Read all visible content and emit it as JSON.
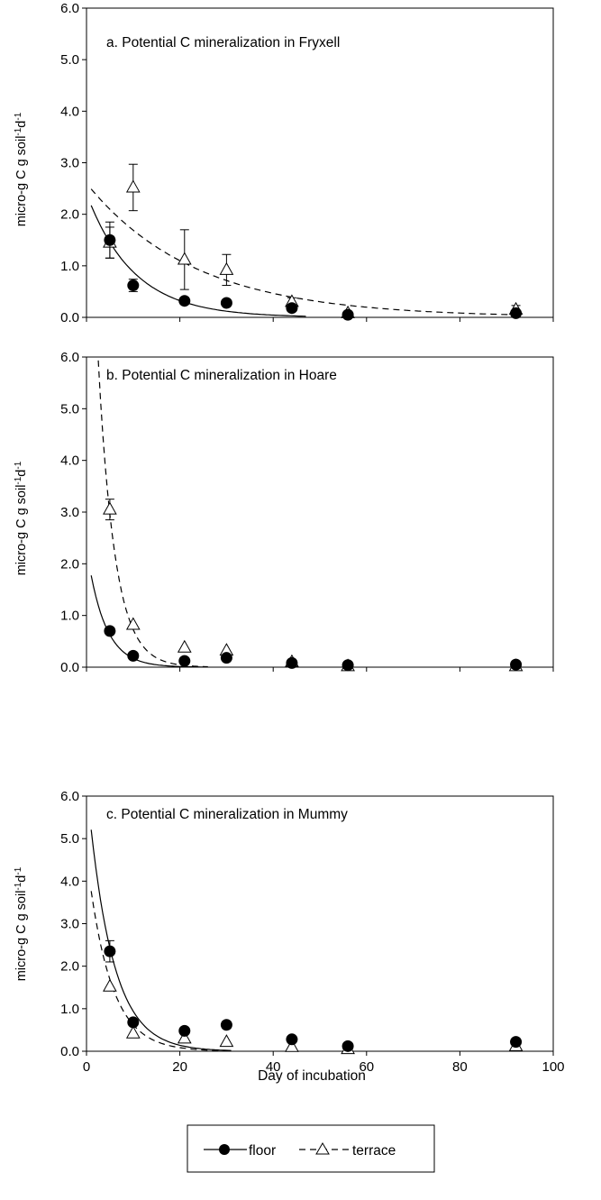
{
  "chart_data": [
    {
      "type": "scatter",
      "title": "a. Potential C mineralization in Fryxell",
      "ylabel_parts": [
        "micro-g C g soil",
        "-1",
        "d",
        "-1"
      ],
      "xlim": [
        0,
        100
      ],
      "ylim": [
        0,
        6
      ],
      "yticks": [
        "0.0",
        "1.0",
        "2.0",
        "3.0",
        "4.0",
        "5.0",
        "6.0"
      ],
      "series": [
        {
          "name": "floor",
          "marker": "filled-circle",
          "line": "solid",
          "x": [
            5,
            10,
            21,
            30,
            44,
            56,
            92
          ],
          "y": [
            1.5,
            0.62,
            0.32,
            0.28,
            0.18,
            0.05,
            0.08
          ],
          "err": [
            0.35,
            0.12,
            0,
            0,
            0,
            0,
            0
          ],
          "fit": {
            "a": 2.4,
            "k": 0.1,
            "x_end": 47
          }
        },
        {
          "name": "terrace",
          "marker": "open-triangle",
          "line": "dashed",
          "x": [
            5,
            10,
            21,
            30,
            44,
            56,
            92
          ],
          "y": [
            1.45,
            2.52,
            1.12,
            0.92,
            0.3,
            0.08,
            0.15
          ],
          "err": [
            0.3,
            0.45,
            0.58,
            0.3,
            0.08,
            0,
            0.08
          ],
          "fit": {
            "a": 2.6,
            "k": 0.043,
            "x_end": 92
          }
        }
      ]
    },
    {
      "type": "scatter",
      "title": "b. Potential C mineralization in Hoare",
      "ylabel_parts": [
        "micro-g C g soil",
        "-1",
        "d",
        "-1"
      ],
      "xlim": [
        0,
        100
      ],
      "ylim": [
        0,
        6
      ],
      "yticks": [
        "0.0",
        "1.0",
        "2.0",
        "3.0",
        "4.0",
        "5.0",
        "6.0"
      ],
      "series": [
        {
          "name": "floor",
          "marker": "filled-circle",
          "line": "solid",
          "x": [
            5,
            10,
            21,
            30,
            44,
            56,
            92
          ],
          "y": [
            0.7,
            0.22,
            0.12,
            0.18,
            0.08,
            0.04,
            0.05
          ],
          "err": [
            0,
            0,
            0,
            0,
            0,
            0,
            0
          ],
          "fit": {
            "a": 2.3,
            "k": 0.26,
            "x_end": 26
          }
        },
        {
          "name": "terrace",
          "marker": "open-triangle",
          "line": "dashed",
          "x": [
            5,
            10,
            21,
            30,
            44,
            56,
            92
          ],
          "y": [
            3.05,
            0.82,
            0.38,
            0.32,
            0.1,
            0.02,
            0.02
          ],
          "err": [
            0.2,
            0,
            0,
            0,
            0.05,
            0,
            0
          ],
          "fit": {
            "a": 12,
            "k": 0.28,
            "x_end": 26
          }
        }
      ]
    },
    {
      "type": "scatter",
      "title": "c. Potential C mineralization in Mummy",
      "ylabel_parts": [
        "micro-g C g soil",
        "-1",
        "d",
        "-1"
      ],
      "xlabel": "Day of incubation",
      "xlim": [
        0,
        100
      ],
      "ylim": [
        0,
        6
      ],
      "xticks": [
        "0",
        "20",
        "40",
        "60",
        "80",
        "100"
      ],
      "yticks": [
        "0.0",
        "1.0",
        "2.0",
        "3.0",
        "4.0",
        "5.0",
        "6.0"
      ],
      "series": [
        {
          "name": "floor",
          "marker": "filled-circle",
          "line": "solid",
          "x": [
            5,
            10,
            21,
            30,
            44,
            56,
            92
          ],
          "y": [
            2.35,
            0.68,
            0.48,
            0.62,
            0.28,
            0.12,
            0.22
          ],
          "err": [
            0.25,
            0,
            0,
            0,
            0,
            0,
            0
          ],
          "fit": {
            "a": 6.3,
            "k": 0.19,
            "x_end": 31
          }
        },
        {
          "name": "terrace",
          "marker": "open-triangle",
          "line": "dashed",
          "x": [
            5,
            10,
            21,
            30,
            44,
            56,
            92
          ],
          "y": [
            1.52,
            0.42,
            0.3,
            0.22,
            0.1,
            0.05,
            0.12
          ],
          "err": [
            0,
            0,
            0,
            0,
            0,
            0,
            0
          ],
          "fit": {
            "a": 4.6,
            "k": 0.2,
            "x_end": 30
          }
        }
      ]
    }
  ],
  "legend": {
    "placement": "bottom-center",
    "items": [
      {
        "label": "floor",
        "marker": "filled-circle",
        "line": "solid"
      },
      {
        "label": "terrace",
        "marker": "open-triangle",
        "line": "dashed"
      }
    ]
  }
}
